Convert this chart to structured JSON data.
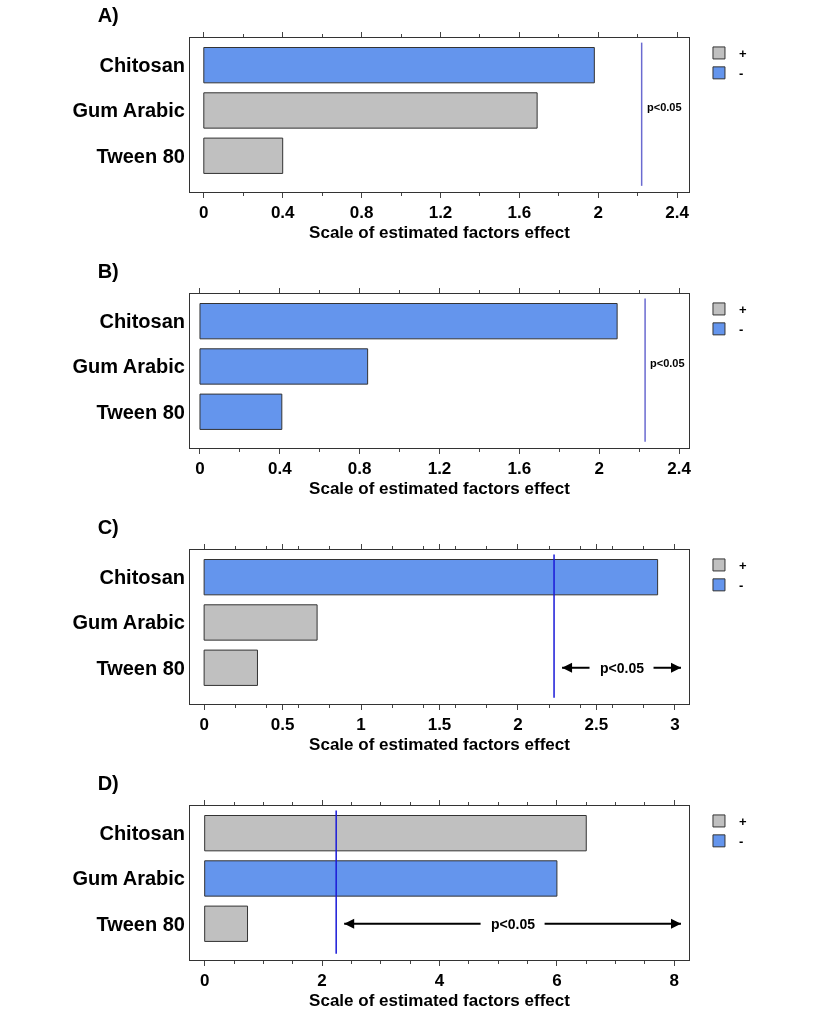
{
  "chart_data": [
    {
      "type": "bar",
      "orientation": "horizontal",
      "title": "A)",
      "xlabel": "Scale of estimated factors effect",
      "categories": [
        "Chitosan",
        "Gum Arabic",
        "Tween 80"
      ],
      "series": [
        {
          "name": "+",
          "color": "#c0c0c0",
          "values": [
            null,
            1.69,
            0.4
          ]
        },
        {
          "name": "-",
          "color": "#6495ed",
          "values": [
            1.98,
            null,
            null
          ]
        }
      ],
      "xlim": [
        -0.07,
        2.46
      ],
      "xticks": [
        0,
        0.4,
        0.8,
        1.2,
        1.6,
        2,
        2.4
      ],
      "ref_lines": [
        {
          "axis": "x",
          "value": 2.22,
          "label": "p<0.05",
          "color": "#6a6ad0"
        }
      ],
      "grid": false,
      "legend": "top right"
    },
    {
      "type": "bar",
      "orientation": "horizontal",
      "title": "B)",
      "xlabel": "Scale of estimated factors effect",
      "categories": [
        "Chitosan",
        "Gum Arabic",
        "Tween 80"
      ],
      "series": [
        {
          "name": "+",
          "color": "#c0c0c0",
          "values": [
            null,
            null,
            null
          ]
        },
        {
          "name": "-",
          "color": "#6495ed",
          "values": [
            2.09,
            0.84,
            0.41
          ]
        }
      ],
      "xlim": [
        -0.05,
        2.45
      ],
      "xticks": [
        0,
        0.4,
        0.8,
        1.2,
        1.6,
        2,
        2.4
      ],
      "ref_lines": [
        {
          "axis": "x",
          "value": 2.23,
          "label": "p<0.05",
          "color": "#6a6ad0"
        }
      ],
      "grid": false,
      "legend": "top right"
    },
    {
      "type": "bar",
      "orientation": "horizontal",
      "title": "C)",
      "xlabel": "Scale of estimated factors effect",
      "categories": [
        "Chitosan",
        "Gum Arabic",
        "Tween 80"
      ],
      "series": [
        {
          "name": "+",
          "color": "#c0c0c0",
          "values": [
            null,
            0.72,
            0.34
          ]
        },
        {
          "name": "-",
          "color": "#6495ed",
          "values": [
            2.89,
            null,
            null
          ]
        }
      ],
      "xlim": [
        -0.09,
        3.09
      ],
      "xticks": [
        0,
        0.5,
        1,
        1.5,
        2,
        2.5,
        3
      ],
      "ref_lines": [
        {
          "axis": "x",
          "value": 2.23,
          "color": "#1a1ad8"
        }
      ],
      "annotations": [
        "p<0.05"
      ],
      "grid": false,
      "legend": "top right"
    },
    {
      "type": "bar",
      "orientation": "horizontal",
      "title": "D)",
      "xlabel": "Scale of estimated factors effect",
      "categories": [
        "Chitosan",
        "Gum Arabic",
        "Tween 80"
      ],
      "series": [
        {
          "name": "+",
          "color": "#c0c0c0",
          "values": [
            6.5,
            null,
            0.73
          ]
        },
        {
          "name": "-",
          "color": "#6495ed",
          "values": [
            null,
            6.0,
            null
          ]
        }
      ],
      "xlim": [
        -0.25,
        8.25
      ],
      "xticks": [
        0,
        2,
        4,
        6,
        8
      ],
      "ref_lines": [
        {
          "axis": "x",
          "value": 2.24,
          "color": "#1a1ad8"
        }
      ],
      "annotations": [
        "p<0.05"
      ],
      "grid": false,
      "legend": "top right"
    }
  ]
}
